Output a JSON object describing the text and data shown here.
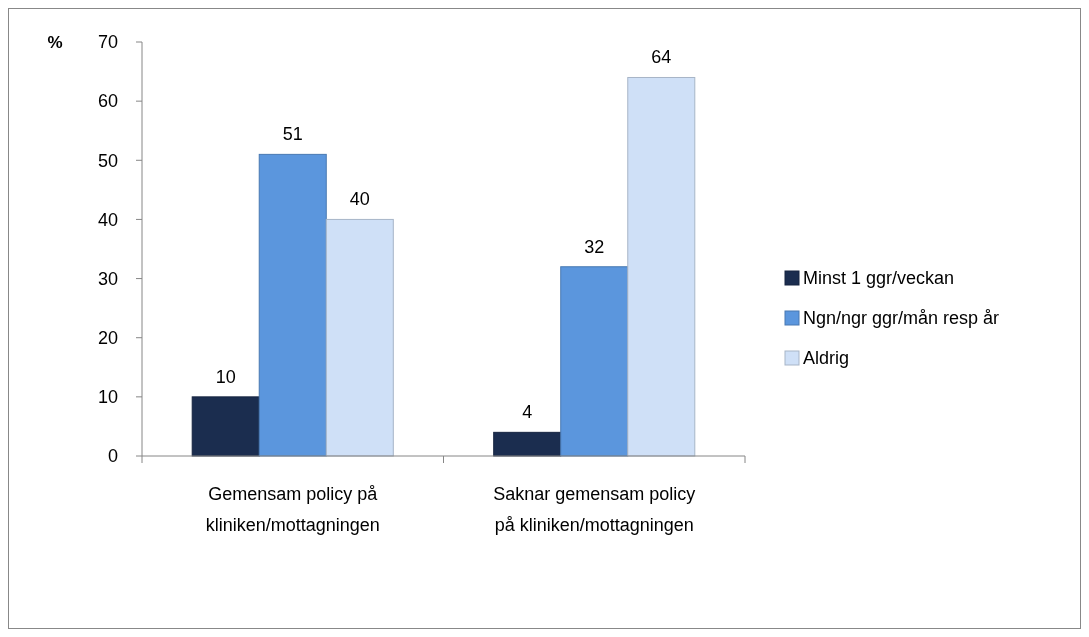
{
  "chart_data": {
    "type": "bar",
    "ylabel": "%",
    "categories": [
      "Gemensam policy på kliniken/mottagningen",
      "Saknar gemensam policy på kliniken/mottagningen"
    ],
    "series": [
      {
        "name": "Minst 1 ggr/veckan",
        "color": "#1b2d4f",
        "values": [
          10,
          4
        ]
      },
      {
        "name": "Ngn/ngr ggr/mån resp år",
        "color": "#5b96dd",
        "values": [
          51,
          32
        ]
      },
      {
        "name": "Aldrig",
        "color": "#cfe0f7",
        "values": [
          40,
          64
        ]
      }
    ],
    "ylim": [
      0,
      70
    ],
    "yticks": [
      0,
      10,
      20,
      30,
      40,
      50,
      60,
      70
    ],
    "grid": false,
    "legend": "right",
    "data_labels": true
  }
}
